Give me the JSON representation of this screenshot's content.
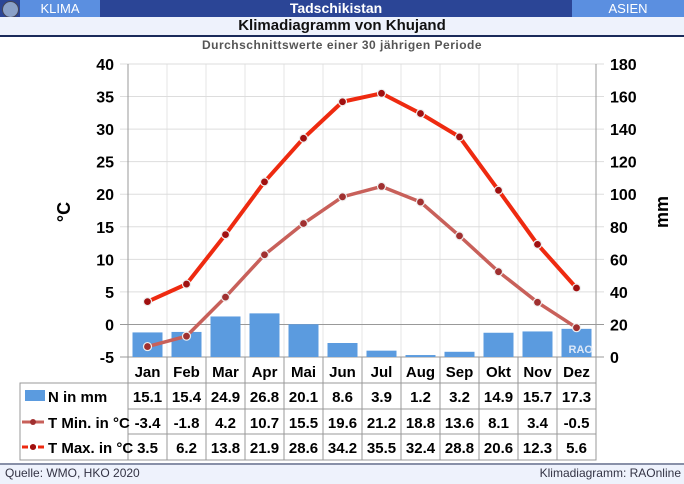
{
  "header": {
    "left": "KLIMA",
    "center": "Tadschikistan",
    "right": "ASIEN"
  },
  "footer": {
    "source": "Quelle: WMO, HKO 2020",
    "credit": "Klimadiagramm: RAOnline"
  },
  "watermark": "RAO",
  "colors": {
    "bar": "#5b9bdf",
    "tmin": "#c8605a",
    "tmax": "#ee2a10"
  },
  "chart_data": {
    "type": "bar+line",
    "title": "Klimadiagramm von Khujand",
    "subtitle": "Durchschnittswerte einer 30 jährigen Periode",
    "ylabel": "°C",
    "y2label": "mm",
    "ylim": [
      -5,
      40
    ],
    "y2lim": [
      0,
      180
    ],
    "yticks": [
      "-5",
      "0",
      "5",
      "10",
      "15",
      "20",
      "25",
      "30",
      "35",
      "40"
    ],
    "y2ticks": [
      "0",
      "20",
      "40",
      "60",
      "80",
      "100",
      "120",
      "140",
      "160",
      "180"
    ],
    "categories": [
      "Jan",
      "Feb",
      "Mar",
      "Apr",
      "Mai",
      "Jun",
      "Jul",
      "Aug",
      "Sep",
      "Okt",
      "Nov",
      "Dez"
    ],
    "series": [
      {
        "name": "N in mm",
        "type": "bar",
        "axis": "right",
        "values": [
          15.1,
          15.4,
          24.9,
          26.8,
          20.1,
          8.6,
          3.9,
          1.2,
          3.2,
          14.9,
          15.7,
          17.3
        ],
        "display": [
          "15.1",
          "15.4",
          "24.9",
          "26.8",
          "20.1",
          "8.6",
          "3.9",
          "1.2",
          "3.2",
          "14.9",
          "15.7",
          "17.3"
        ]
      },
      {
        "name": "T Min. in °C",
        "type": "line",
        "axis": "left",
        "values": [
          -3.4,
          -1.8,
          4.2,
          10.7,
          15.5,
          19.6,
          21.2,
          18.8,
          13.6,
          8.1,
          3.4,
          -0.5
        ],
        "display": [
          "-3.4",
          "-1.8",
          "4.2",
          "10.7",
          "15.5",
          "19.6",
          "21.2",
          "18.8",
          "13.6",
          "8.1",
          "3.4",
          "-0.5"
        ]
      },
      {
        "name": "T Max. in °C",
        "type": "line",
        "axis": "left",
        "values": [
          3.5,
          6.2,
          13.8,
          21.9,
          28.6,
          34.2,
          35.5,
          32.4,
          28.8,
          20.6,
          12.3,
          5.6
        ],
        "display": [
          "3.5",
          "6.2",
          "13.8",
          "21.9",
          "28.6",
          "34.2",
          "35.5",
          "32.4",
          "28.8",
          "20.6",
          "12.3",
          "5.6"
        ]
      }
    ]
  }
}
